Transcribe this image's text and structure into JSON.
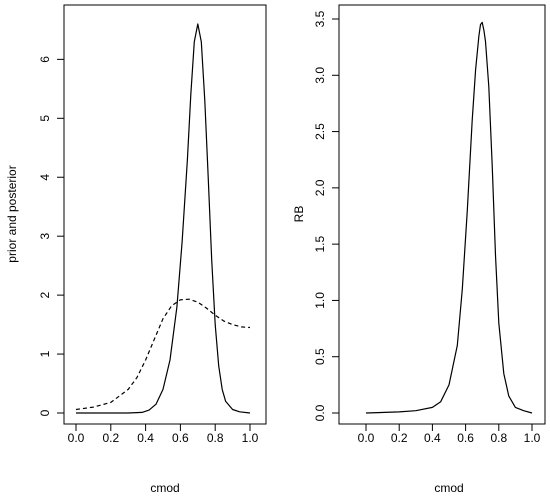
{
  "chart_data": [
    {
      "type": "line",
      "xlabel": "cmod",
      "ylabel": "prior and posterior",
      "xlim": [
        0.0,
        1.0
      ],
      "ylim": [
        0,
        6.6
      ],
      "xticks": [
        "0.0",
        "0.2",
        "0.4",
        "0.6",
        "0.8",
        "1.0"
      ],
      "yticks": [
        "0",
        "1",
        "2",
        "3",
        "4",
        "5",
        "6"
      ],
      "grid": false,
      "series": [
        {
          "style": "solid",
          "x": [
            0.0,
            0.3,
            0.38,
            0.42,
            0.46,
            0.5,
            0.54,
            0.58,
            0.61,
            0.64,
            0.66,
            0.68,
            0.7,
            0.72,
            0.74,
            0.76,
            0.78,
            0.8,
            0.82,
            0.84,
            0.86,
            0.9,
            0.94,
            1.0
          ],
          "y": [
            0.0,
            0.0,
            0.01,
            0.05,
            0.15,
            0.4,
            0.9,
            1.8,
            2.9,
            4.3,
            5.4,
            6.3,
            6.6,
            6.3,
            5.3,
            4.0,
            2.6,
            1.5,
            0.8,
            0.4,
            0.2,
            0.06,
            0.02,
            0.0
          ]
        },
        {
          "style": "dashed",
          "x": [
            0.0,
            0.1,
            0.2,
            0.3,
            0.35,
            0.4,
            0.45,
            0.5,
            0.55,
            0.6,
            0.65,
            0.7,
            0.75,
            0.8,
            0.85,
            0.9,
            0.95,
            1.0
          ],
          "y": [
            0.06,
            0.1,
            0.18,
            0.4,
            0.6,
            0.9,
            1.25,
            1.6,
            1.82,
            1.92,
            1.93,
            1.88,
            1.78,
            1.66,
            1.56,
            1.5,
            1.46,
            1.45
          ]
        }
      ]
    },
    {
      "type": "line",
      "xlabel": "cmod",
      "ylabel": "RB",
      "xlim": [
        0.0,
        1.0
      ],
      "ylim": [
        0,
        3.5
      ],
      "xticks": [
        "0.0",
        "0.2",
        "0.4",
        "0.6",
        "0.8",
        "1.0"
      ],
      "yticks": [
        "0.0",
        "0.5",
        "1.0",
        "1.5",
        "2.0",
        "2.5",
        "3.0",
        "3.5"
      ],
      "grid": false,
      "series": [
        {
          "style": "solid",
          "x": [
            0.0,
            0.2,
            0.3,
            0.4,
            0.45,
            0.5,
            0.55,
            0.58,
            0.61,
            0.64,
            0.66,
            0.68,
            0.69,
            0.7,
            0.71,
            0.72,
            0.74,
            0.76,
            0.78,
            0.8,
            0.83,
            0.86,
            0.9,
            0.95,
            1.0
          ],
          "y": [
            0.0,
            0.01,
            0.02,
            0.05,
            0.1,
            0.25,
            0.6,
            1.1,
            1.8,
            2.6,
            3.05,
            3.35,
            3.45,
            3.47,
            3.4,
            3.3,
            2.9,
            2.2,
            1.4,
            0.8,
            0.35,
            0.15,
            0.05,
            0.02,
            0.0
          ]
        }
      ]
    }
  ]
}
